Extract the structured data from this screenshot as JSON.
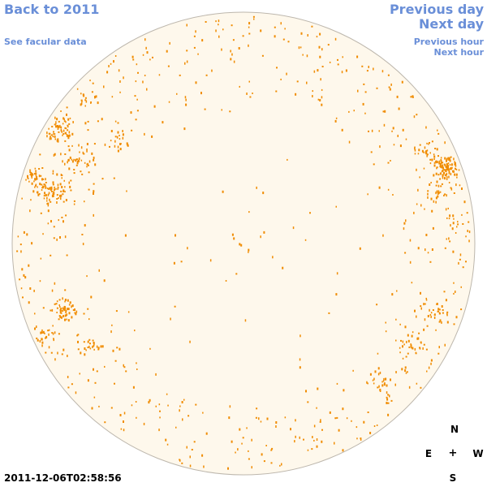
{
  "navigation": {
    "back_to_year": "Back to 2011",
    "see_facular": "See facular data",
    "previous_day": "Previous day",
    "next_day": "Next day",
    "previous_hour": "Previous hour",
    "next_hour": "Next hour"
  },
  "timestamp": "2011-12-06T02:58:56",
  "compass": {
    "north": "N",
    "east": "E",
    "center": "+",
    "west": "W",
    "south": "S"
  },
  "colors": {
    "disk_fill": "#fef8ec",
    "disk_edge": "#bdb7ad",
    "facula": "#f08c00",
    "link": "#6a8fd8"
  },
  "icons": {
    "sun": "solar-disk-icon"
  }
}
